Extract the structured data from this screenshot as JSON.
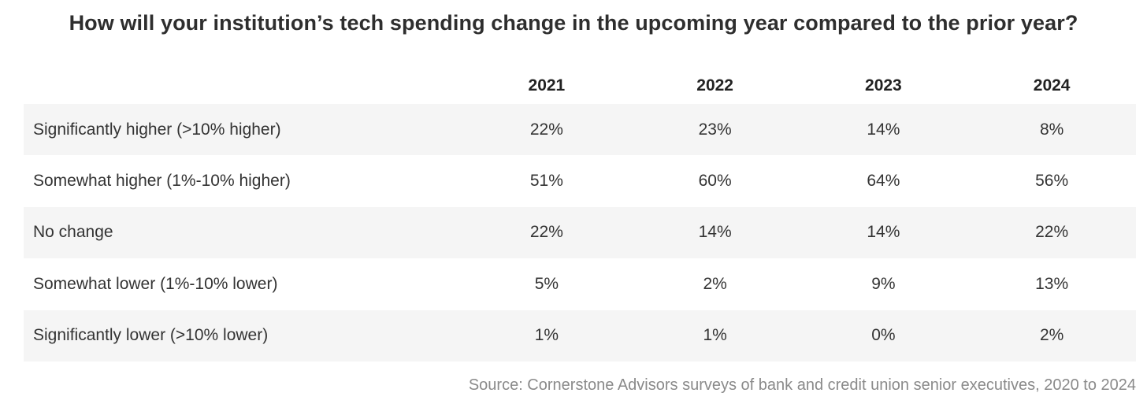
{
  "title": "How will your institution’s tech spending change in the upcoming year compared to the prior year?",
  "source": "Source: Cornerstone Advisors surveys of bank and credit union senior executives, 2020 to 2024",
  "chart_data": {
    "type": "table",
    "title": "How will your institution’s tech spending change in the upcoming year compared to the prior year?",
    "columns": [
      "2021",
      "2022",
      "2023",
      "2024"
    ],
    "rows": [
      {
        "label": "Significantly higher (>10% higher)",
        "values": [
          "22%",
          "23%",
          "14%",
          "8%"
        ]
      },
      {
        "label": "Somewhat higher (1%-10% higher)",
        "values": [
          "51%",
          "60%",
          "64%",
          "56%"
        ]
      },
      {
        "label": "No change",
        "values": [
          "22%",
          "14%",
          "14%",
          "22%"
        ]
      },
      {
        "label": "Somewhat lower (1%-10% lower)",
        "values": [
          "5%",
          "2%",
          "9%",
          "13%"
        ]
      },
      {
        "label": "Significantly lower (>10% lower)",
        "values": [
          "1%",
          "1%",
          "0%",
          "2%"
        ]
      }
    ],
    "stripe_color": "#f5f5f5"
  }
}
